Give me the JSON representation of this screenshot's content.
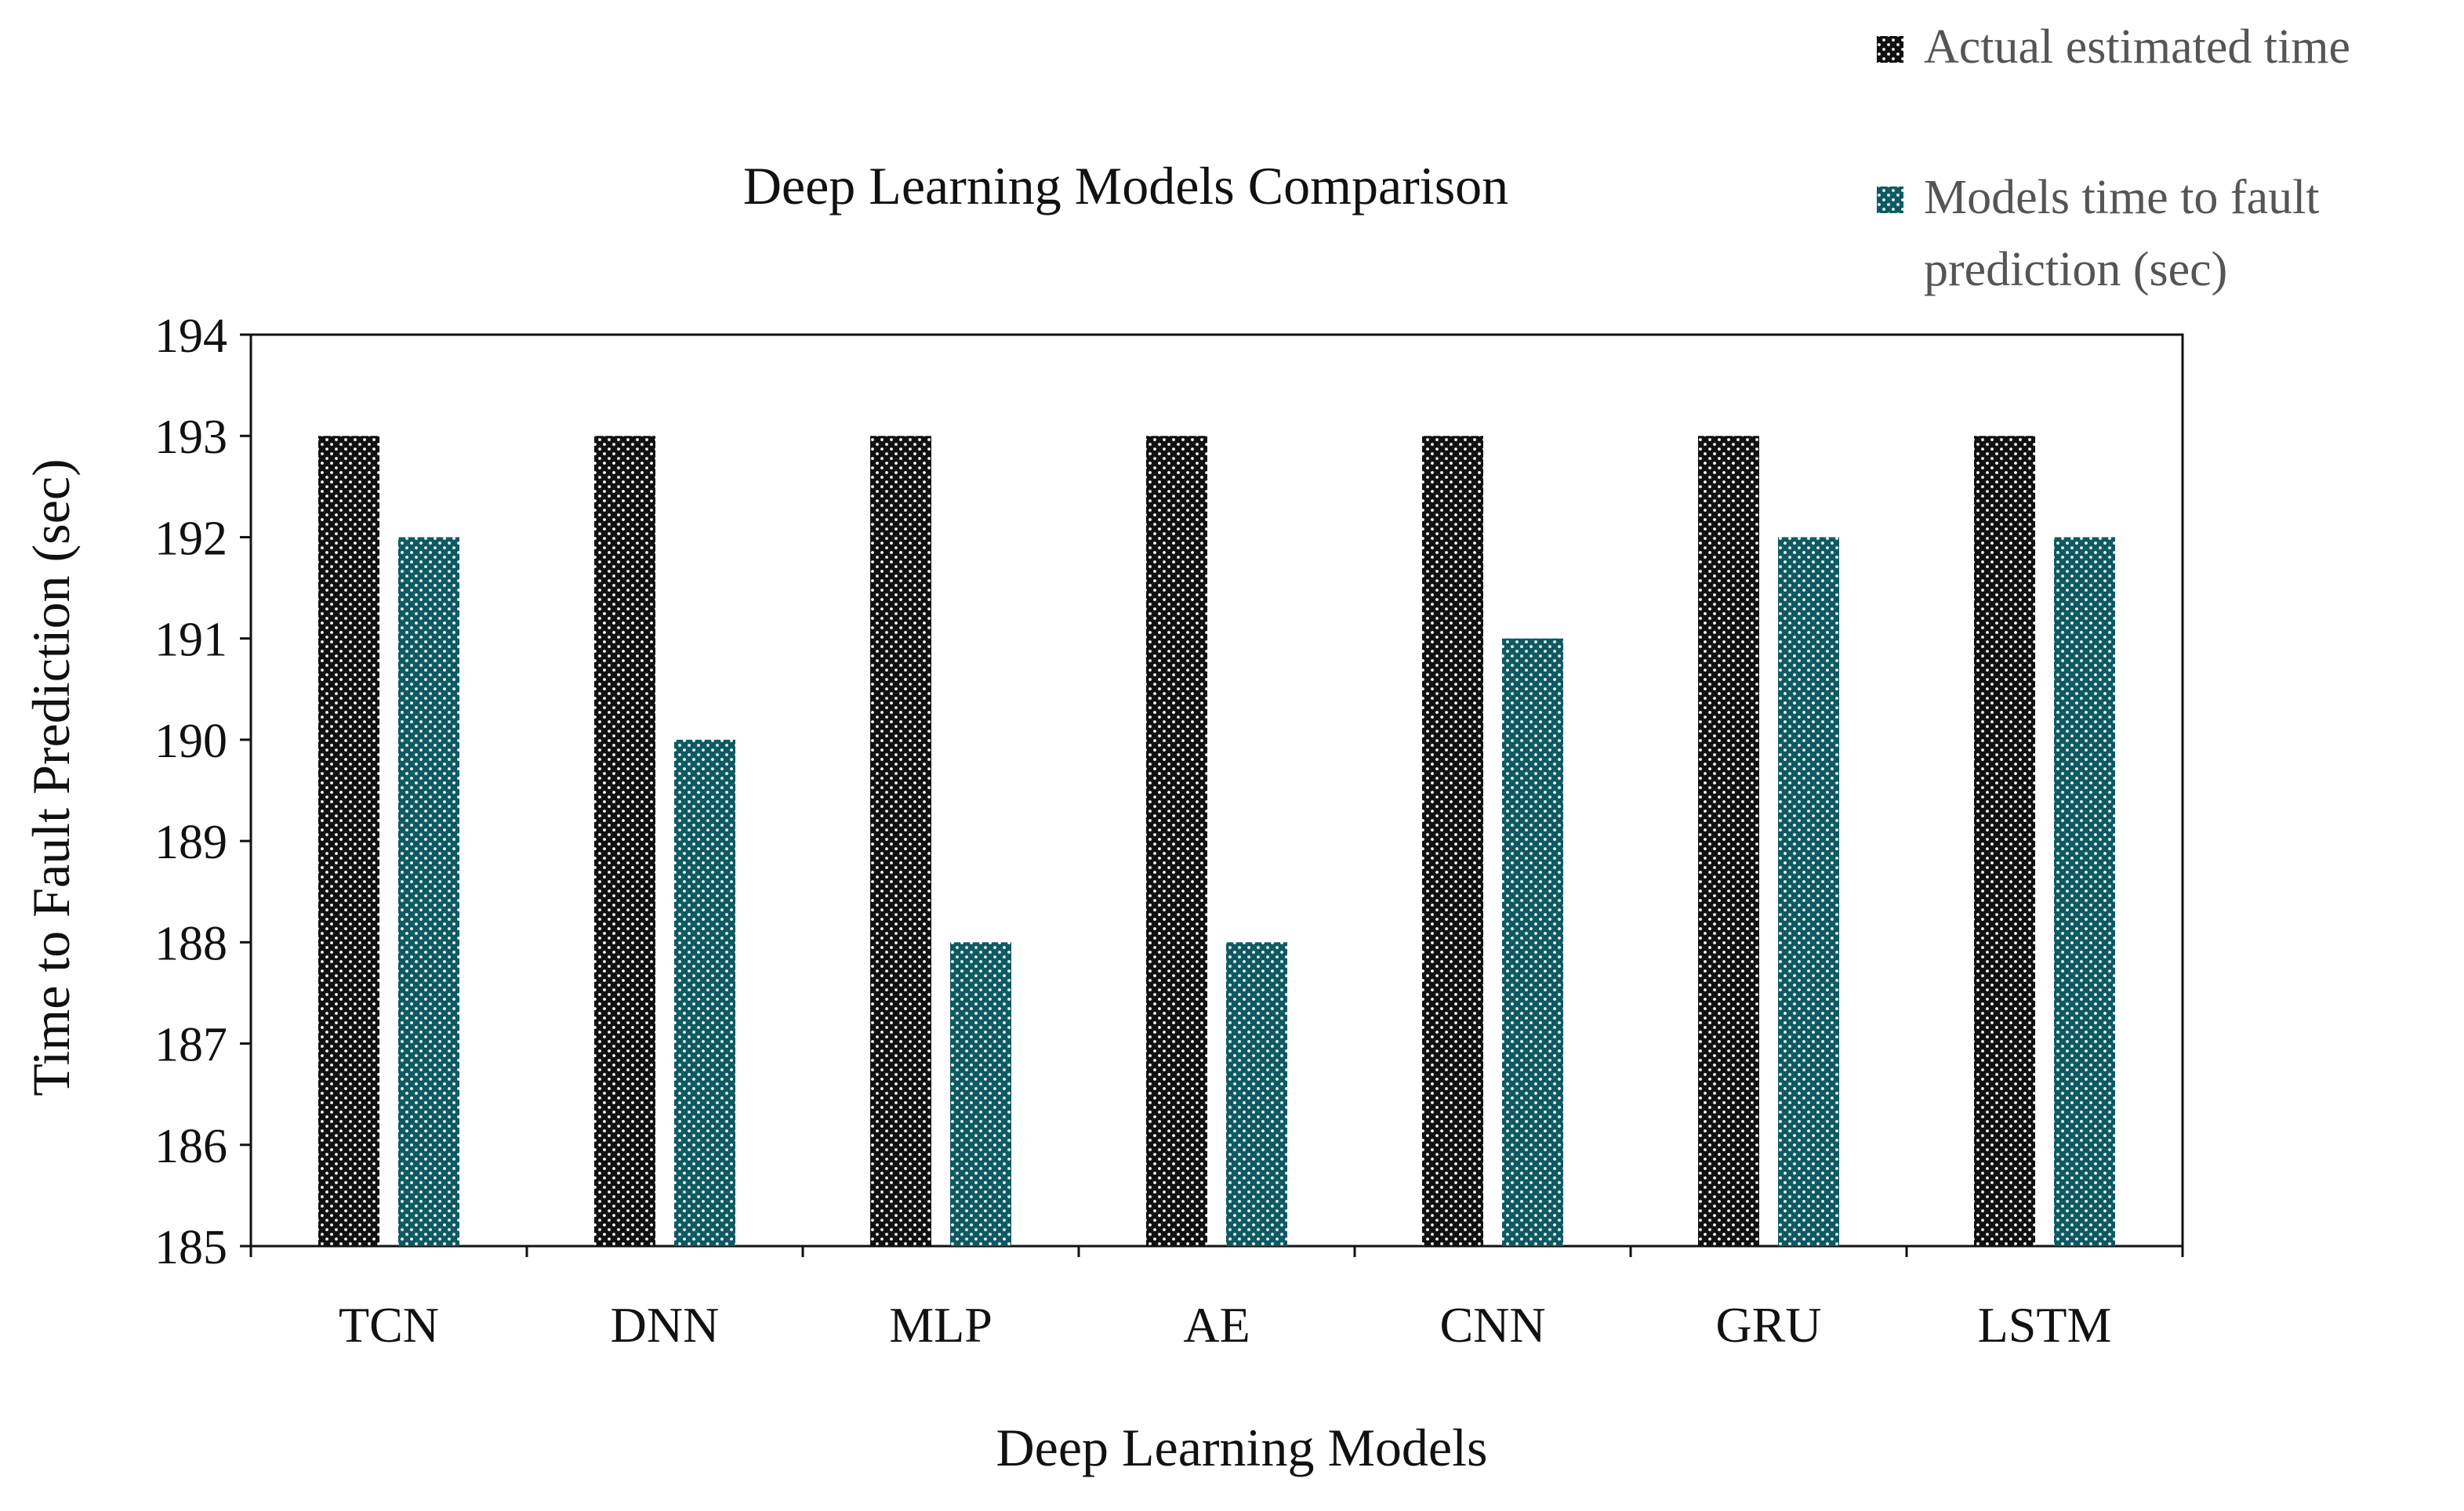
{
  "chart_data": {
    "type": "bar",
    "title": "Deep Learning Models Comparison",
    "xlabel": "Deep Learning Models",
    "ylabel": "Time to Fault Prediction (sec)",
    "categories": [
      "TCN",
      "DNN",
      "MLP",
      "AE",
      "CNN",
      "GRU",
      "LSTM"
    ],
    "ylim": [
      185,
      194
    ],
    "yticks": [
      185,
      186,
      187,
      188,
      189,
      190,
      191,
      192,
      193,
      194
    ],
    "grid": false,
    "legend_position": "top-right",
    "series": [
      {
        "name": "Actual estimated time",
        "color": "#111111",
        "values": [
          193,
          193,
          193,
          193,
          193,
          193,
          193
        ]
      },
      {
        "name": "Models time to fault prediction (sec)",
        "legend_lines": [
          "Models time to fault",
          "prediction (sec)"
        ],
        "color": "#0e5a63",
        "values": [
          192,
          190,
          188,
          188,
          191,
          192,
          192
        ]
      }
    ]
  }
}
